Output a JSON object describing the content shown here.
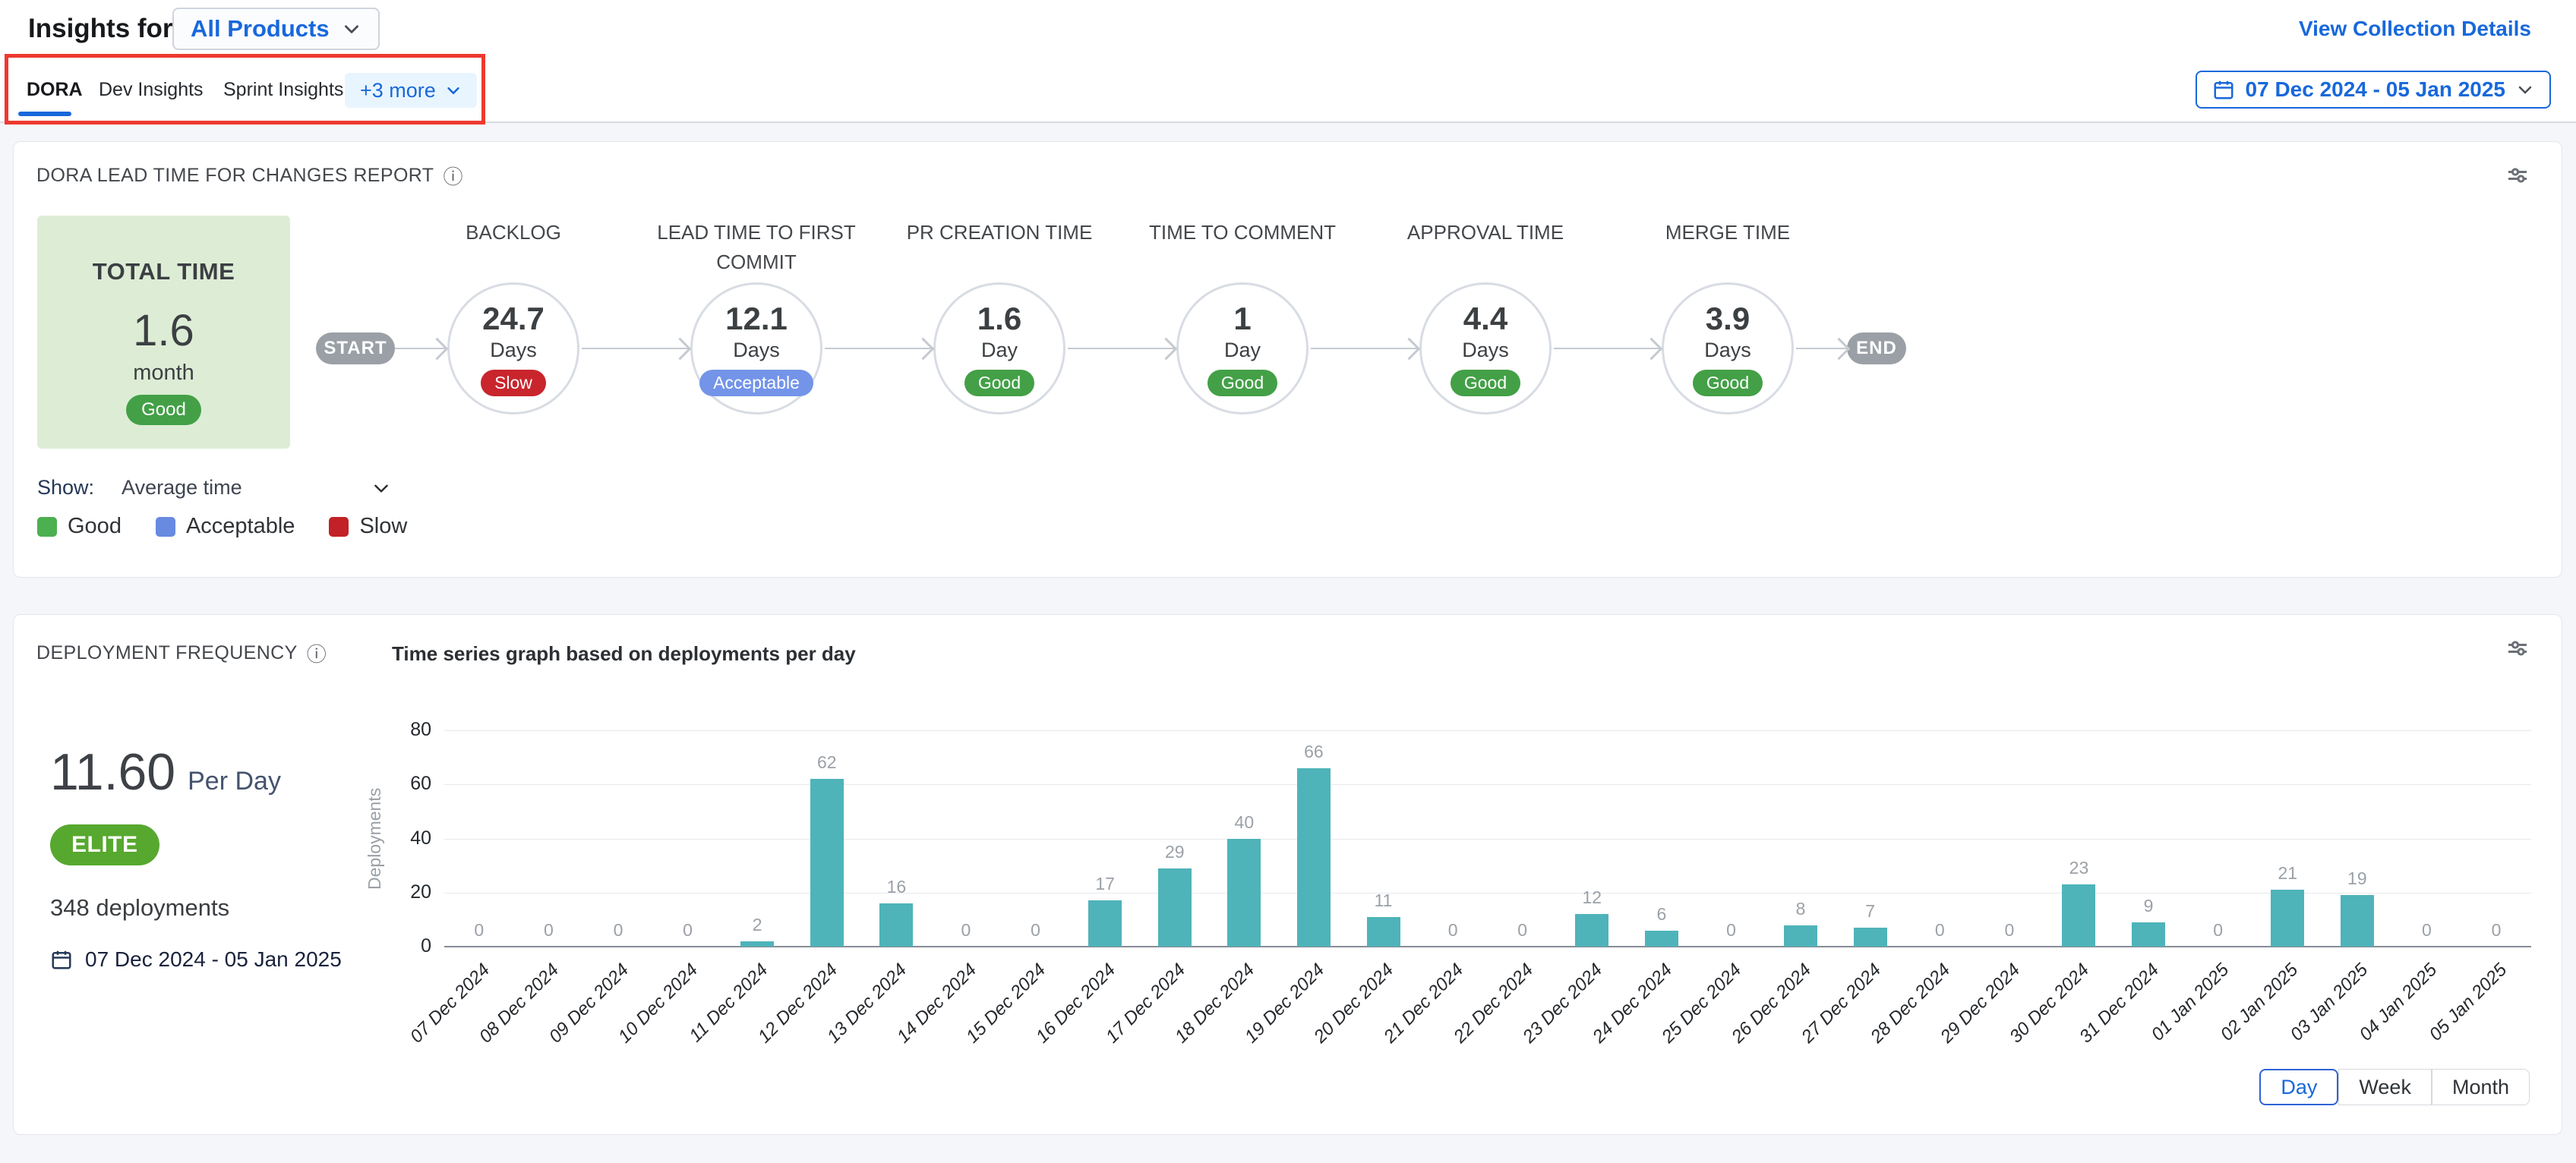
{
  "header": {
    "title": "Insights for",
    "product_selector": "All Products",
    "view_collection_details": "View Collection Details",
    "date_range": "07 Dec 2024 - 05 Jan 2025"
  },
  "tabs": {
    "items": [
      {
        "label": "DORA",
        "active": true
      },
      {
        "label": "Dev Insights",
        "active": false
      },
      {
        "label": "Sprint Insights",
        "active": false
      }
    ],
    "more_label": "+3 more"
  },
  "lead_time": {
    "title": "DORA LEAD TIME FOR CHANGES REPORT",
    "info_icon": "info-icon",
    "total": {
      "label": "TOTAL TIME",
      "value": "1.6",
      "unit": "month",
      "status": "Good"
    },
    "start_label": "START",
    "end_label": "END",
    "stages": [
      {
        "name": "BACKLOG",
        "value": "24.7",
        "unit": "Days",
        "status": "Slow"
      },
      {
        "name": "LEAD TIME TO FIRST COMMIT",
        "value": "12.1",
        "unit": "Days",
        "status": "Acceptable"
      },
      {
        "name": "PR CREATION TIME",
        "value": "1.6",
        "unit": "Day",
        "status": "Good"
      },
      {
        "name": "TIME TO COMMENT",
        "value": "1",
        "unit": "Day",
        "status": "Good"
      },
      {
        "name": "APPROVAL TIME",
        "value": "4.4",
        "unit": "Days",
        "status": "Good"
      },
      {
        "name": "MERGE TIME",
        "value": "3.9",
        "unit": "Days",
        "status": "Good"
      }
    ],
    "show_label": "Show:",
    "show_value": "Average time",
    "legend": [
      {
        "label": "Good",
        "color": "#4caf50"
      },
      {
        "label": "Acceptable",
        "color": "#688ae0"
      },
      {
        "label": "Slow",
        "color": "#c12127"
      }
    ]
  },
  "deployment": {
    "title": "DEPLOYMENT FREQUENCY",
    "chart_title": "Time series graph based on deployments per day",
    "rate_value": "11.60",
    "rate_unit": "Per Day",
    "tier_badge": "ELITE",
    "total_deployments": "348 deployments",
    "date_range": "07 Dec 2024 - 05 Jan 2025",
    "granularity_options": [
      "Day",
      "Week",
      "Month"
    ],
    "granularity_selected": "Day"
  },
  "chart_data": {
    "type": "bar",
    "title": "Time series graph based on deployments per day",
    "xlabel": "",
    "ylabel": "Deployments",
    "ylim": [
      0,
      80
    ],
    "yticks": [
      0,
      20,
      40,
      60,
      80
    ],
    "grid": true,
    "bar_color": "#4fb3ba",
    "categories": [
      "07 Dec 2024",
      "08 Dec 2024",
      "09 Dec 2024",
      "10 Dec 2024",
      "11 Dec 2024",
      "12 Dec 2024",
      "13 Dec 2024",
      "14 Dec 2024",
      "15 Dec 2024",
      "16 Dec 2024",
      "17 Dec 2024",
      "18 Dec 2024",
      "19 Dec 2024",
      "20 Dec 2024",
      "21 Dec 2024",
      "22 Dec 2024",
      "23 Dec 2024",
      "24 Dec 2024",
      "25 Dec 2024",
      "26 Dec 2024",
      "27 Dec 2024",
      "28 Dec 2024",
      "29 Dec 2024",
      "30 Dec 2024",
      "31 Dec 2024",
      "01 Jan 2025",
      "02 Jan 2025",
      "03 Jan 2025",
      "04 Jan 2025",
      "05 Jan 2025"
    ],
    "values": [
      0,
      0,
      0,
      0,
      2,
      62,
      16,
      0,
      0,
      17,
      29,
      40,
      66,
      11,
      0,
      0,
      12,
      6,
      0,
      8,
      7,
      0,
      0,
      23,
      9,
      0,
      21,
      19,
      0,
      0
    ]
  },
  "colors": {
    "accent_blue": "#1868db",
    "status": {
      "Good": "#43a047",
      "Acceptable": "#7394e8",
      "Slow": "#c9252d"
    },
    "gray_pill": "#9aa0a6",
    "annotation_red": "#ee392f"
  }
}
